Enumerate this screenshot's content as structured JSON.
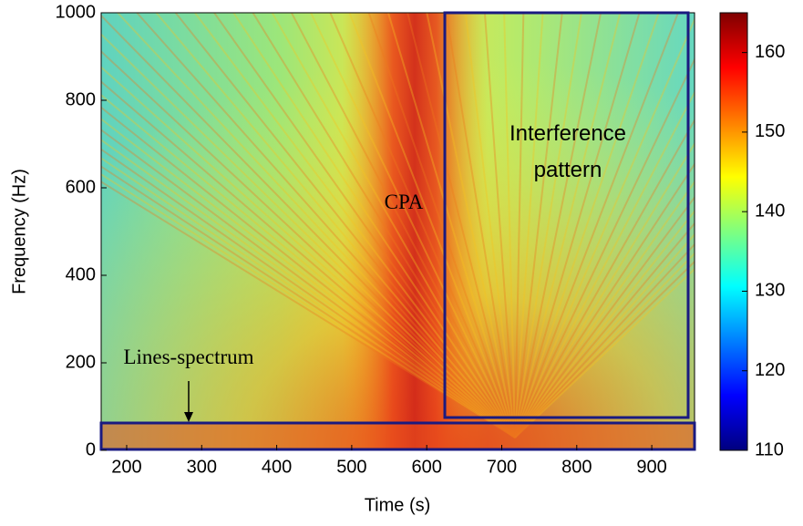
{
  "chart_data": {
    "type": "heatmap",
    "x_label": "Time (s)",
    "y_label": "Frequency (Hz)",
    "xlim": [
      166,
      957
    ],
    "xticks": [
      200,
      300,
      400,
      500,
      600,
      700,
      800,
      900
    ],
    "ylim": [
      0,
      1000
    ],
    "yticks": [
      0,
      200,
      400,
      600,
      800,
      1000
    ],
    "colormap": "jet",
    "colorbar": {
      "clim": [
        110,
        165
      ],
      "ticks": [
        110,
        120,
        130,
        140,
        150,
        160
      ]
    },
    "annotations": [
      {
        "text": "CPA"
      },
      {
        "text": "Interference pattern"
      },
      {
        "text": "Lines-spectrum"
      }
    ]
  }
}
